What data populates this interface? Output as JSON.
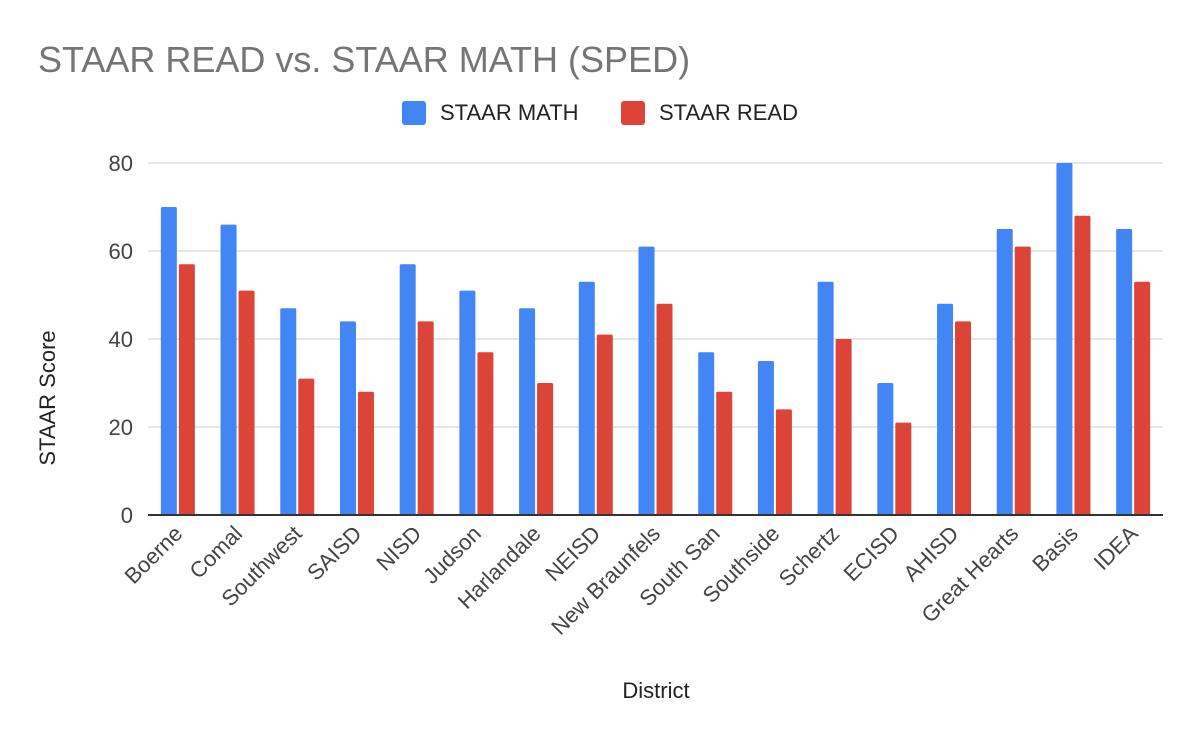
{
  "chart_data": {
    "type": "bar",
    "title": "STAAR READ vs. STAAR MATH (SPED)",
    "xlabel": "District",
    "ylabel": "STAAR Score",
    "ylim": [
      0,
      80
    ],
    "yticks": [
      0,
      20,
      40,
      60,
      80
    ],
    "grid": true,
    "legend_position": "top",
    "categories": [
      "Boerne",
      "Comal",
      "Southwest",
      "SAISD",
      "NISD",
      "Judson",
      "Harlandale",
      "NEISD",
      "New Braunfels",
      "South San",
      "Southside",
      "Schertz",
      "ECISD",
      "AHISD",
      "Great Hearts",
      "Basis",
      "IDEA"
    ],
    "series": [
      {
        "name": "STAAR MATH",
        "color": "#4285f4",
        "values": [
          70,
          66,
          47,
          44,
          57,
          51,
          47,
          53,
          61,
          37,
          35,
          53,
          30,
          48,
          65,
          80,
          65
        ]
      },
      {
        "name": "STAAR READ",
        "color": "#db4437",
        "values": [
          57,
          51,
          31,
          28,
          44,
          37,
          30,
          41,
          48,
          28,
          24,
          40,
          21,
          44,
          61,
          68,
          53
        ]
      }
    ]
  }
}
